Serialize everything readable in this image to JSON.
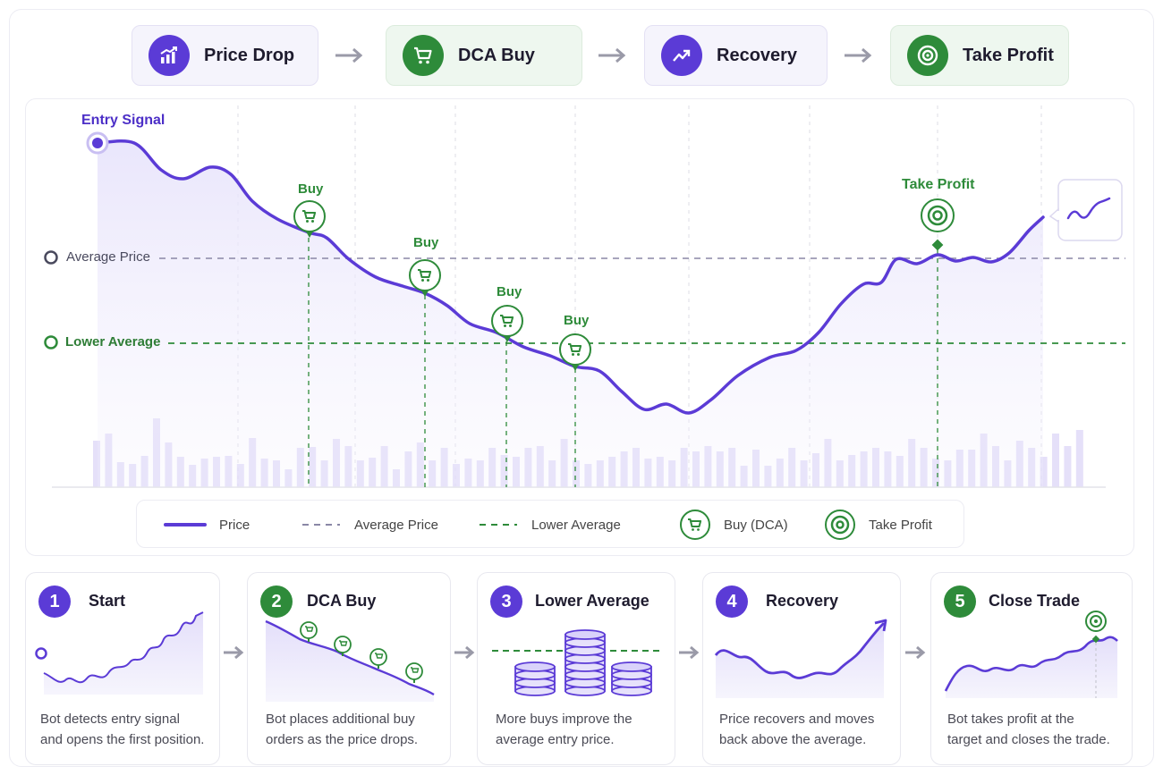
{
  "flow": [
    {
      "label": "Price Drop",
      "icon": "bar-chart-up-icon",
      "tone": "purple"
    },
    {
      "label": "DCA Buy",
      "icon": "cart-icon",
      "tone": "green"
    },
    {
      "label": "Recovery",
      "icon": "trend-up-icon",
      "tone": "purple"
    },
    {
      "label": "Take Profit",
      "icon": "target-icon",
      "tone": "green"
    }
  ],
  "chart": {
    "entry_label": "Entry Signal",
    "buy_label": "Buy",
    "take_profit_label": "Take Profit",
    "average_price_label": "Average Price",
    "lower_average_label": "Lower Average"
  },
  "chart_data": {
    "type": "line",
    "series": [
      {
        "name": "Price"
      }
    ],
    "reference_lines": [
      "Average Price",
      "Lower Average"
    ],
    "markers": [
      "Buy",
      "Buy",
      "Buy",
      "Buy",
      "Take Profit"
    ],
    "volume_bars": true
  },
  "legend": {
    "price": "Price",
    "average": "Average Price",
    "lower": "Lower Average",
    "buy": "Buy (DCA)",
    "take_profit": "Take Profit"
  },
  "cards": [
    {
      "num": "1",
      "title": "Start",
      "desc_1": "Bot detects entry signal",
      "desc_2": "and opens the first position."
    },
    {
      "num": "2",
      "title": "DCA Buy",
      "desc_1": "Bot places additional buy",
      "desc_2": "orders as the price drops."
    },
    {
      "num": "3",
      "title": "Lower Average",
      "desc_1": "More buys improve the",
      "desc_2": "average entry price."
    },
    {
      "num": "4",
      "title": "Recovery",
      "desc_1": "Price recovers and moves",
      "desc_2": "back above the average."
    },
    {
      "num": "5",
      "title": "Close Trade",
      "desc_1": "Bot takes profit at the",
      "desc_2": "target and closes the trade."
    }
  ],
  "colors": {
    "purple": "#5b3bd6",
    "green": "#2e8b3a",
    "gray_dash": "#8a87a6"
  }
}
